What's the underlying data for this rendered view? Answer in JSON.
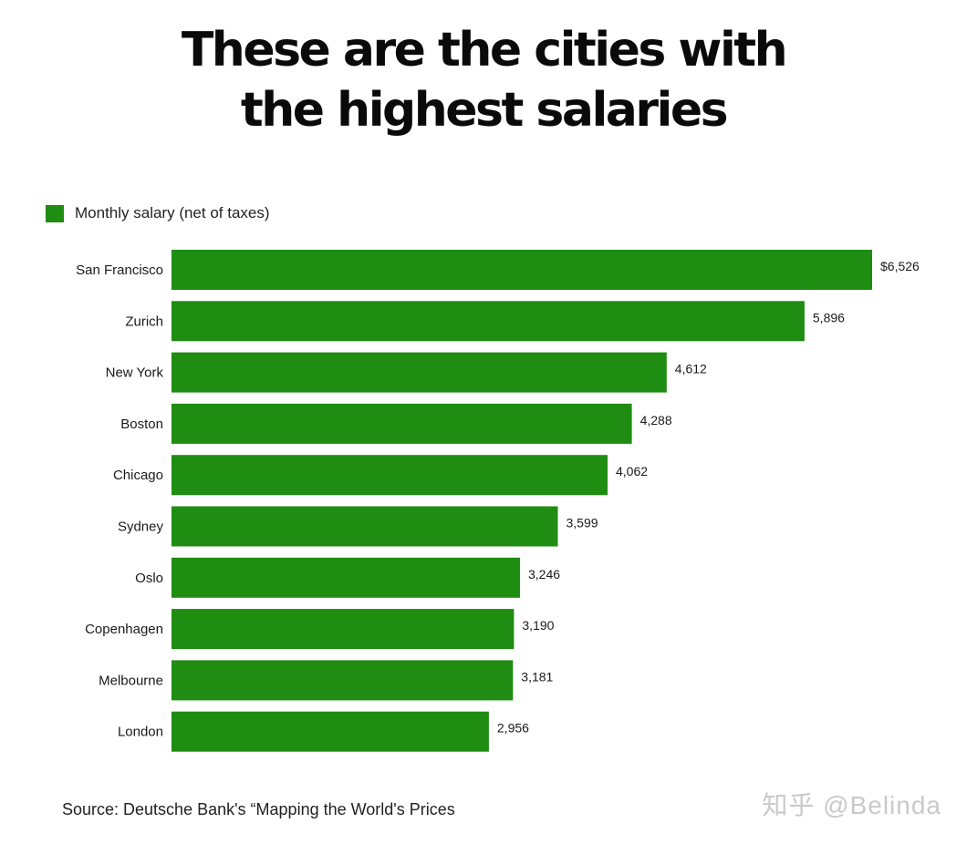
{
  "title_line1": "These are the cities with",
  "title_line2": "the highest salaries",
  "source": "Source: Deutsche Bank's “Mapping the World's Prices",
  "watermark": "知乎 @Belinda",
  "colors": {
    "bar": "#1f8c12",
    "text": "#1a1a1a"
  },
  "chart_data": {
    "type": "bar",
    "orientation": "horizontal",
    "title": "These are the cities with the highest salaries",
    "legend": [
      "Monthly salary (net of taxes)"
    ],
    "legend_position": "top-left",
    "grid": false,
    "categories": [
      "San Francisco",
      "Zurich",
      "New York",
      "Boston",
      "Chicago",
      "Sydney",
      "Oslo",
      "Copenhagen",
      "Melbourne",
      "London"
    ],
    "series": [
      {
        "name": "Monthly salary (net of taxes)",
        "values": [
          6526,
          5896,
          4612,
          4288,
          4062,
          3599,
          3246,
          3190,
          3181,
          2956
        ]
      }
    ],
    "value_labels": [
      "$6,526",
      "5,896",
      "4,612",
      "4,288",
      "4,062",
      "3,599",
      "3,246",
      "3,190",
      "3,181",
      "2,956"
    ],
    "xlim": [
      0,
      6526
    ]
  }
}
